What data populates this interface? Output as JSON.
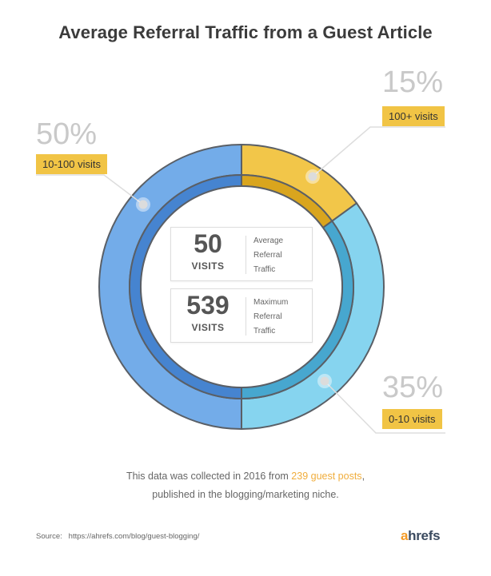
{
  "title": "Average Referral Traffic from a Guest Article",
  "chart_data": {
    "type": "pie",
    "subtype": "donut",
    "slices": [
      {
        "pct": "15%",
        "value": 15,
        "label": "100+ visits",
        "color": "#f2c649",
        "inner_color": "#d9a51e"
      },
      {
        "pct": "35%",
        "value": 35,
        "label": "0-10 visits",
        "color": "#86d4ef",
        "inner_color": "#47a7cf"
      },
      {
        "pct": "50%",
        "value": 50,
        "label": "10-100 visits",
        "color": "#73ace9",
        "inner_color": "#4684d0"
      }
    ]
  },
  "stats": [
    {
      "number": "50",
      "unit": "VISITS",
      "desc": [
        "Average",
        "Referral",
        "Traffic"
      ]
    },
    {
      "number": "539",
      "unit": "VISITS",
      "desc": [
        "Maximum",
        "Referral",
        "Traffic"
      ]
    }
  ],
  "footnote": {
    "line1_prefix": "This data was collected in 2016 from ",
    "line1_highlight": "239 guest posts",
    "line1_suffix": ",",
    "line2": "published in the blogging/marketing niche."
  },
  "source": {
    "label": "Source:",
    "url": "https://ahrefs.com/blog/guest-blogging/"
  },
  "logo": {
    "a": "a",
    "rest": "hrefs"
  },
  "colors": {
    "tag": "#f1c445",
    "pct_text": "#c9c9c9",
    "outline": "#5a5f66",
    "highlight": "#f0ad3c"
  }
}
